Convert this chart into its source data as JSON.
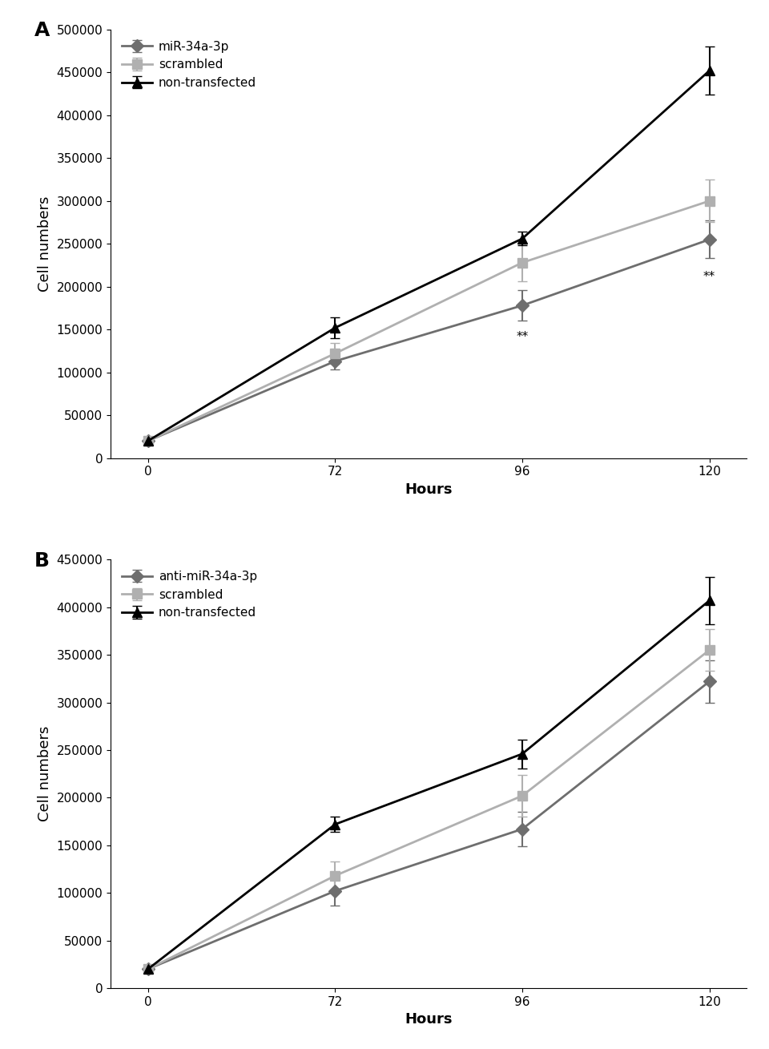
{
  "panel_A": {
    "title": "A",
    "x_positions": [
      0,
      1,
      2,
      3
    ],
    "x_labels": [
      "0",
      "72",
      "96",
      "120"
    ],
    "series": [
      {
        "key": "miR-34a-3p",
        "y": [
          20000,
          113000,
          178000,
          255000
        ],
        "yerr": [
          2000,
          10000,
          18000,
          22000
        ],
        "color": "#6e6e6e",
        "marker": "D",
        "label": "miR-34a-3p"
      },
      {
        "key": "scrambled",
        "y": [
          20000,
          122000,
          228000,
          300000
        ],
        "yerr": [
          2000,
          12000,
          22000,
          25000
        ],
        "color": "#b0b0b0",
        "marker": "s",
        "label": "scrambled"
      },
      {
        "key": "non-transfected",
        "y": [
          20000,
          152000,
          256000,
          452000
        ],
        "yerr": [
          2000,
          12000,
          8000,
          28000
        ],
        "color": "#000000",
        "marker": "^",
        "label": "non-transfected"
      }
    ],
    "ylim": [
      0,
      500000
    ],
    "yticks": [
      0,
      50000,
      100000,
      150000,
      200000,
      250000,
      300000,
      350000,
      400000,
      450000,
      500000
    ],
    "xlabel": "Hours",
    "ylabel": "Cell numbers",
    "annots": [
      {
        "xi": 2,
        "y": 148000,
        "text": "**"
      },
      {
        "xi": 3,
        "y": 218000,
        "text": "**"
      }
    ]
  },
  "panel_B": {
    "title": "B",
    "x_positions": [
      0,
      1,
      2,
      3
    ],
    "x_labels": [
      "0",
      "72",
      "96",
      "120"
    ],
    "series": [
      {
        "key": "anti-miR-34a-3p",
        "y": [
          20000,
          102000,
          167000,
          322000
        ],
        "yerr": [
          2000,
          15000,
          18000,
          22000
        ],
        "color": "#6e6e6e",
        "marker": "D",
        "label": "anti-miR-34a-3p"
      },
      {
        "key": "scrambled",
        "y": [
          20000,
          118000,
          202000,
          355000
        ],
        "yerr": [
          2000,
          15000,
          22000,
          22000
        ],
        "color": "#b0b0b0",
        "marker": "s",
        "label": "scrambled"
      },
      {
        "key": "non-transfected",
        "y": [
          20000,
          172000,
          246000,
          407000
        ],
        "yerr": [
          2000,
          8000,
          15000,
          25000
        ],
        "color": "#000000",
        "marker": "^",
        "label": "non-transfected"
      }
    ],
    "ylim": [
      0,
      450000
    ],
    "yticks": [
      0,
      50000,
      100000,
      150000,
      200000,
      250000,
      300000,
      350000,
      400000,
      450000
    ],
    "xlabel": "Hours",
    "ylabel": "Cell numbers",
    "annots": []
  },
  "background_color": "#ffffff",
  "fontsize_label": 13,
  "fontsize_tick": 11,
  "fontsize_legend": 11,
  "fontsize_panel": 18,
  "linewidth": 2.0,
  "markersize": 8,
  "capsize": 4,
  "elinewidth": 1.5
}
